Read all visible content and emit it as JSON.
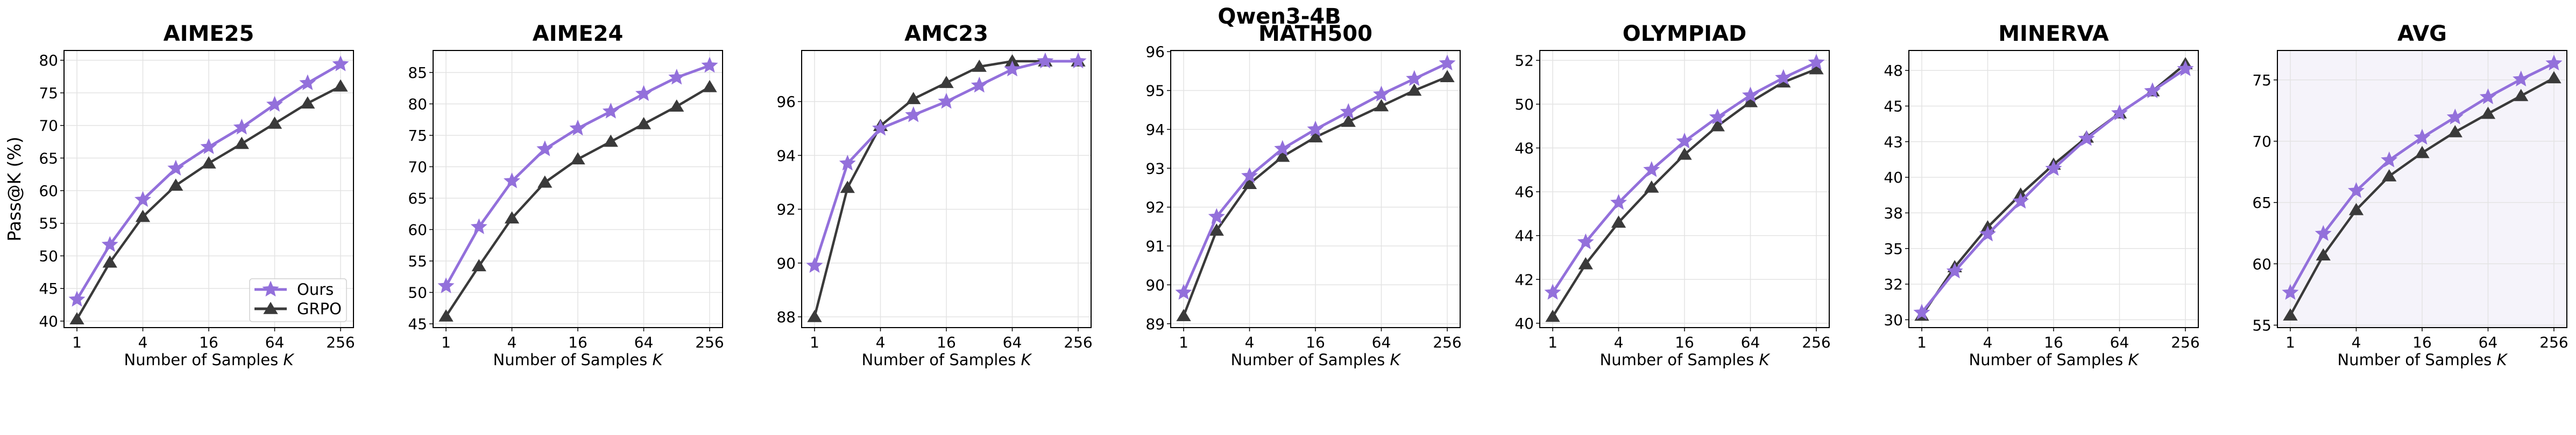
{
  "suptitle": "Qwen3-4B",
  "colors": {
    "Ours": "#9370db",
    "GRPO": "#3a3a3a",
    "avg_background": "#f5f3fa"
  },
  "chart_data": [
    {
      "type": "line",
      "title": "AIME25",
      "xlabel": "Number of Samples K",
      "ylabel": "Pass@K (%)",
      "x": [
        1,
        2,
        4,
        8,
        16,
        32,
        64,
        128,
        256
      ],
      "x_scale": "log2",
      "xticks": [
        1,
        4,
        16,
        64,
        256
      ],
      "ylim": [
        39,
        81.5
      ],
      "yticks": [
        40,
        45,
        50,
        55,
        60,
        65,
        70,
        75,
        80
      ],
      "ytick_labels": [
        "40",
        "45",
        "50",
        "55",
        "60",
        "65",
        "70",
        "75",
        "80"
      ],
      "grid": true,
      "legend": "lower-right",
      "series": [
        {
          "name": "Ours",
          "marker": "star",
          "values": [
            43.3,
            51.7,
            58.6,
            63.4,
            66.7,
            69.7,
            73.2,
            76.5,
            79.4
          ]
        },
        {
          "name": "GRPO",
          "marker": "triangle",
          "values": [
            40.3,
            49.0,
            56.0,
            60.8,
            64.2,
            67.2,
            70.3,
            73.4,
            76.0
          ]
        }
      ]
    },
    {
      "type": "line",
      "title": "AIME24",
      "xlabel": "Number of Samples K",
      "x": [
        1,
        2,
        4,
        8,
        16,
        32,
        64,
        128,
        256
      ],
      "x_scale": "log2",
      "xticks": [
        1,
        4,
        16,
        64,
        256
      ],
      "ylim": [
        44.4,
        88.5
      ],
      "yticks": [
        45,
        50,
        55,
        60,
        65,
        70,
        75,
        80,
        85
      ],
      "ytick_labels": [
        "45",
        "50",
        "55",
        "60",
        "65",
        "70",
        "75",
        "80",
        "85"
      ],
      "grid": true,
      "series": [
        {
          "name": "Ours",
          "marker": "star",
          "values": [
            51.0,
            60.4,
            67.7,
            72.8,
            76.1,
            78.8,
            81.6,
            84.2,
            86.1
          ]
        },
        {
          "name": "GRPO",
          "marker": "triangle",
          "values": [
            46.2,
            54.2,
            61.8,
            67.5,
            71.2,
            74.0,
            76.8,
            79.6,
            82.7
          ]
        }
      ]
    },
    {
      "type": "line",
      "title": "AMC23",
      "xlabel": "Number of Samples K",
      "x": [
        1,
        2,
        4,
        8,
        16,
        32,
        64,
        128,
        256
      ],
      "x_scale": "log2",
      "xticks": [
        1,
        4,
        16,
        64,
        256
      ],
      "ylim": [
        87.6,
        97.9
      ],
      "yticks": [
        88,
        90,
        92,
        94,
        96
      ],
      "ytick_labels": [
        "88",
        "90",
        "92",
        "94",
        "96"
      ],
      "grid": true,
      "series": [
        {
          "name": "Ours",
          "marker": "star",
          "values": [
            89.9,
            93.7,
            95.0,
            95.5,
            96.0,
            96.6,
            97.2,
            97.5,
            97.5
          ]
        },
        {
          "name": "GRPO",
          "marker": "triangle",
          "values": [
            88.0,
            92.8,
            95.1,
            96.1,
            96.7,
            97.3,
            97.5,
            97.5,
            97.5
          ]
        }
      ]
    },
    {
      "type": "line",
      "title": "MATH500",
      "xlabel": "Number of Samples K",
      "x": [
        1,
        2,
        4,
        8,
        16,
        32,
        64,
        128,
        256
      ],
      "x_scale": "log2",
      "xticks": [
        1,
        4,
        16,
        64,
        256
      ],
      "ylim": [
        88.9,
        96.03
      ],
      "yticks": [
        89,
        90,
        91,
        92,
        93,
        94,
        95,
        96
      ],
      "ytick_labels": [
        "89",
        "90",
        "91",
        "92",
        "93",
        "94",
        "95",
        "96"
      ],
      "grid": true,
      "series": [
        {
          "name": "Ours",
          "marker": "star",
          "values": [
            89.8,
            91.75,
            92.8,
            93.5,
            94.0,
            94.45,
            94.9,
            95.3,
            95.7
          ]
        },
        {
          "name": "GRPO",
          "marker": "triangle",
          "values": [
            89.2,
            91.4,
            92.6,
            93.3,
            93.8,
            94.2,
            94.6,
            95.0,
            95.35
          ]
        }
      ]
    },
    {
      "type": "line",
      "title": "OLYMPIAD",
      "xlabel": "Number of Samples K",
      "x": [
        1,
        2,
        4,
        8,
        16,
        32,
        64,
        128,
        256
      ],
      "x_scale": "log2",
      "xticks": [
        1,
        4,
        16,
        64,
        256
      ],
      "ylim": [
        39.8,
        52.45
      ],
      "yticks": [
        40,
        42,
        44,
        46,
        48,
        50,
        52
      ],
      "ytick_labels": [
        "40",
        "42",
        "44",
        "46",
        "48",
        "50",
        "52"
      ],
      "grid": true,
      "series": [
        {
          "name": "Ours",
          "marker": "star",
          "values": [
            41.4,
            43.7,
            45.5,
            47.0,
            48.3,
            49.4,
            50.4,
            51.2,
            51.9
          ]
        },
        {
          "name": "GRPO",
          "marker": "triangle",
          "values": [
            40.3,
            42.7,
            44.6,
            46.2,
            47.7,
            49.0,
            50.1,
            51.0,
            51.6
          ]
        }
      ]
    },
    {
      "type": "line",
      "title": "MINERVA",
      "xlabel": "Number of Samples K",
      "x": [
        1,
        2,
        4,
        8,
        16,
        32,
        64,
        128,
        256
      ],
      "x_scale": "log2",
      "xticks": [
        1,
        4,
        16,
        64,
        256
      ],
      "ylim": [
        29.45,
        48.9
      ],
      "yticks": [
        30,
        32.5,
        35,
        37.5,
        40,
        42.5,
        45,
        47.5
      ],
      "ytick_labels": [
        "30",
        "32",
        "35",
        "38",
        "40",
        "43",
        "45",
        "48"
      ],
      "grid": true,
      "series": [
        {
          "name": "Ours",
          "marker": "star",
          "values": [
            30.5,
            33.4,
            36.0,
            38.3,
            40.6,
            42.7,
            44.5,
            46.05,
            47.6
          ]
        },
        {
          "name": "GRPO",
          "marker": "triangle",
          "values": [
            30.3,
            33.7,
            36.5,
            38.8,
            40.9,
            42.8,
            44.5,
            46.05,
            47.95
          ]
        }
      ]
    },
    {
      "type": "line",
      "title": "AVG",
      "xlabel": "Number of Samples K",
      "x": [
        1,
        2,
        4,
        8,
        16,
        32,
        64,
        128,
        256
      ],
      "x_scale": "log2",
      "xticks": [
        1,
        4,
        16,
        64,
        256
      ],
      "ylim": [
        54.8,
        77.4
      ],
      "yticks": [
        55,
        60,
        65,
        70,
        75
      ],
      "ytick_labels": [
        "55",
        "60",
        "65",
        "70",
        "75"
      ],
      "grid": true,
      "background": "shaded",
      "series": [
        {
          "name": "Ours",
          "marker": "star",
          "values": [
            57.65,
            62.45,
            65.95,
            68.45,
            70.3,
            71.95,
            73.6,
            75.05,
            76.35
          ]
        },
        {
          "name": "GRPO",
          "marker": "triangle",
          "values": [
            55.8,
            60.7,
            64.4,
            67.15,
            69.05,
            70.75,
            72.25,
            73.7,
            75.15
          ]
        }
      ]
    }
  ]
}
